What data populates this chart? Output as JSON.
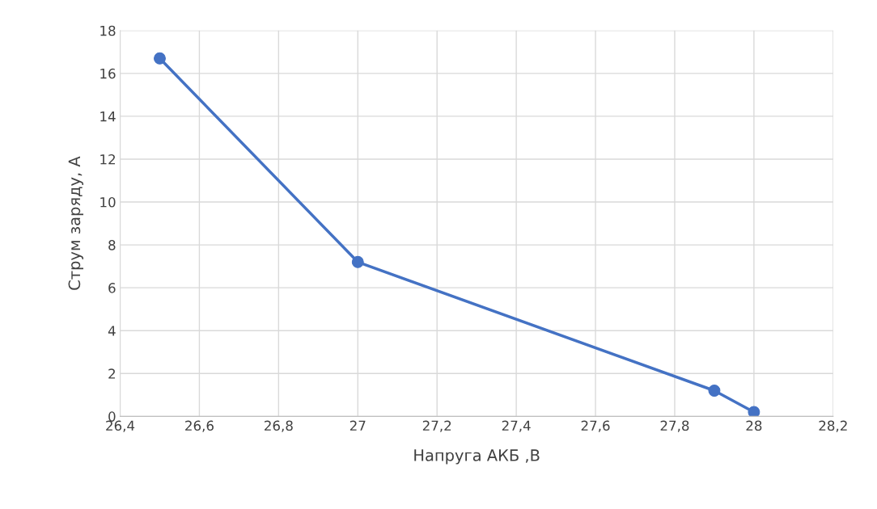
{
  "chart_data": {
    "type": "line",
    "xlabel": "Напруга АКБ ,В",
    "ylabel": "Струм заряду, А",
    "x": [
      26.5,
      27,
      27.9,
      28
    ],
    "series": [
      {
        "color": "#4472c4",
        "values": [
          16.7,
          7.2,
          1.2,
          0.2
        ]
      }
    ],
    "xlim": [
      26.4,
      28.2
    ],
    "xticks": [
      {
        "value": 26.4,
        "label": "26,4"
      },
      {
        "value": 26.6,
        "label": "26,6"
      },
      {
        "value": 26.8,
        "label": "26,8"
      },
      27,
      {
        "value": 27.2,
        "label": "27,2"
      },
      {
        "value": 27.4,
        "label": "27,4"
      },
      {
        "value": 27.6,
        "label": "27,6"
      },
      {
        "value": 27.8,
        "label": "27,8"
      },
      28,
      {
        "value": 28.2,
        "label": "28,2"
      }
    ],
    "ylim": [
      0,
      18
    ],
    "yticks": [
      0,
      2,
      4,
      6,
      8,
      10,
      12,
      14,
      16,
      18
    ],
    "grid": true,
    "marker": "circle",
    "line_style": "solid"
  }
}
